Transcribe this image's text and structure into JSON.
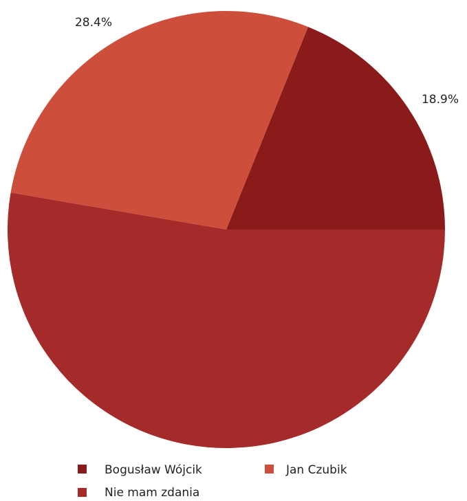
{
  "chart_data": {
    "type": "pie",
    "start_angle_deg": 0,
    "direction": "counterclockwise",
    "slices": [
      {
        "name": "Bogusław Wójcik",
        "value": 18.9,
        "label": "18.9%",
        "color": "#8b1a1a"
      },
      {
        "name": "Jan Czubik",
        "value": 28.4,
        "label": "28.4%",
        "color": "#cd4f3b"
      },
      {
        "name": "Nie mam zdania",
        "value": 52.7,
        "label": "",
        "color": "#a52a2a"
      }
    ],
    "legend": {
      "placement": "bottom",
      "entries": [
        "Bogusław Wójcik",
        "Jan Czubik",
        "Nie mam zdania"
      ]
    }
  }
}
